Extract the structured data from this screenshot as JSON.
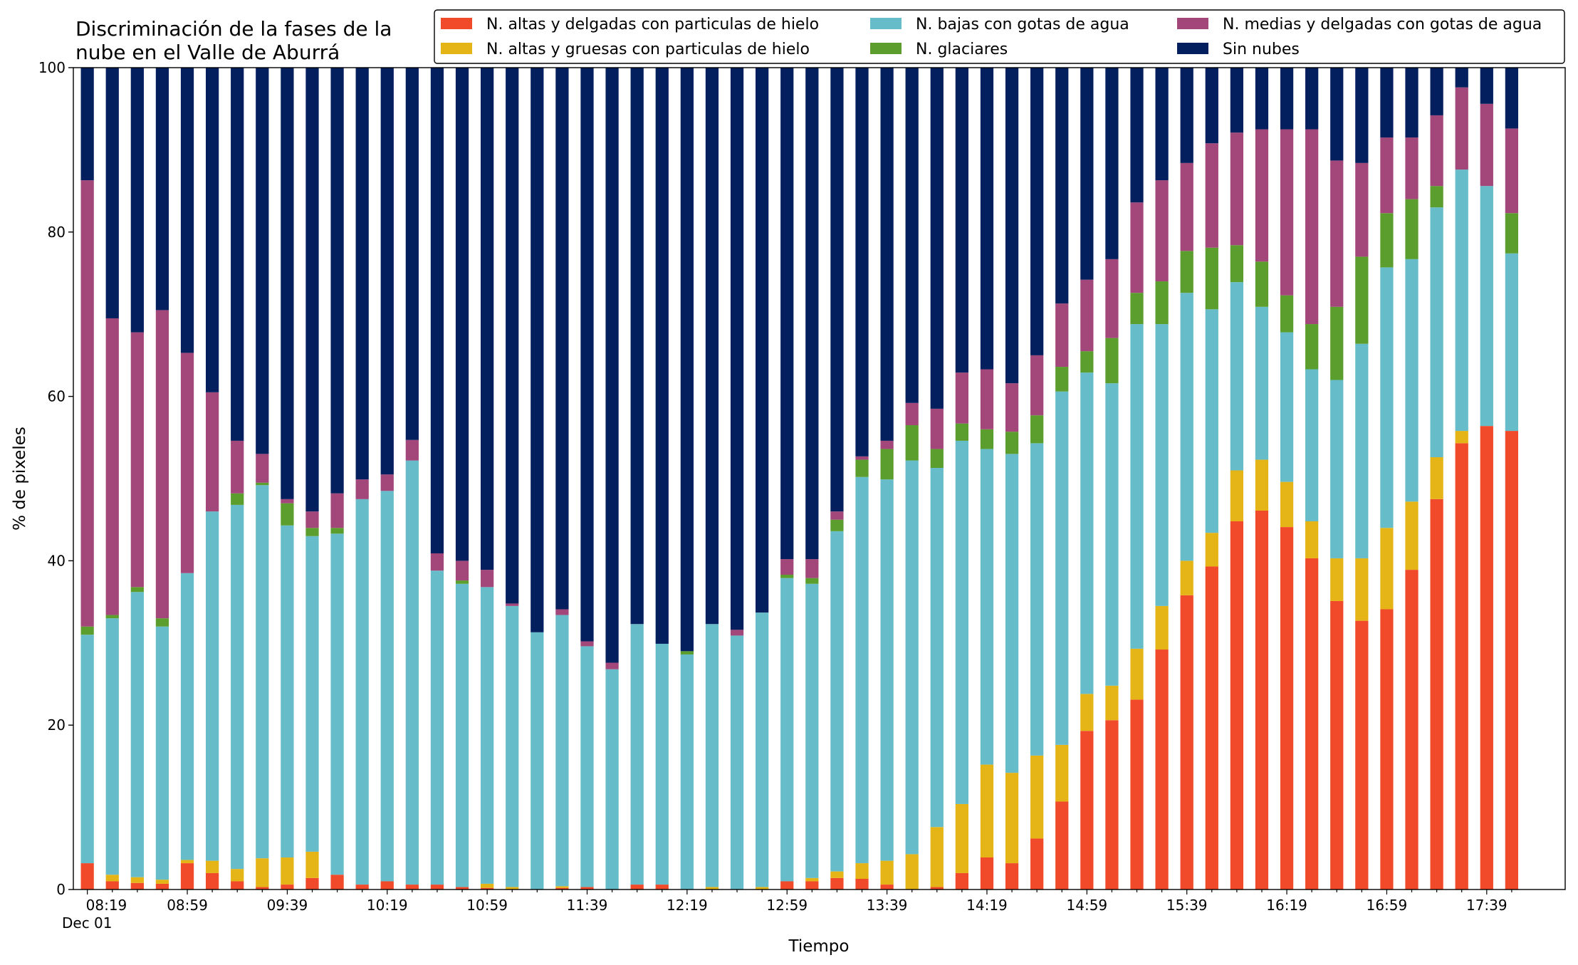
{
  "chart_data": {
    "type": "stacked_bar",
    "title": [
      "Discriminación de la fases de la",
      "nube en el Valle de Aburrá"
    ],
    "xlabel": "Tiempo",
    "ylabel": "% de pixeles",
    "x_date_label": "Dec 01",
    "categories": [
      "08:19",
      null,
      null,
      null,
      "08:59",
      null,
      null,
      null,
      "09:39",
      null,
      null,
      null,
      "10:19",
      null,
      null,
      null,
      "10:59",
      null,
      null,
      null,
      "11:39",
      null,
      null,
      null,
      "12:19",
      null,
      null,
      null,
      "12:59",
      null,
      null,
      null,
      "13:39",
      null,
      null,
      null,
      "14:19",
      null,
      null,
      null,
      "14:59",
      null,
      null,
      null,
      "15:39",
      null,
      null,
      null,
      "16:19",
      null,
      null,
      null,
      "16:59",
      null,
      null,
      null,
      "17:39",
      null
    ],
    "ylim": [
      0,
      100
    ],
    "yticks": [
      0,
      20,
      40,
      60,
      80,
      100
    ],
    "grid": false,
    "legend": "top-right",
    "series": [
      {
        "name": "N. altas y delgadas con particulas de hielo",
        "color": "#f04a2a",
        "values": [
          3.2,
          1.0,
          0.8,
          0.7,
          3.2,
          2,
          1,
          0.3,
          0.6,
          1.4,
          1.8,
          0.6,
          1,
          0.6,
          0.6,
          0.3,
          0.2,
          0,
          0,
          0.2,
          0.3,
          0,
          0.6,
          0.6,
          0,
          0,
          0,
          0,
          1,
          1,
          1.4,
          1.3,
          0.6,
          0,
          0.3,
          2,
          3.9,
          3.2,
          6.2,
          10.7,
          19.3,
          20.6,
          23.1,
          29.2,
          35.8,
          39.3,
          44.8,
          46.1,
          44.1,
          40.3,
          35.1,
          32.7,
          34.1,
          38.9,
          47.5,
          54.3,
          56.4,
          55.8
        ]
      },
      {
        "name": "N. altas y gruesas con particulas de hielo",
        "color": "#e5b517",
        "values": [
          0,
          0.8,
          0.7,
          0.5,
          0.4,
          1.5,
          1.5,
          3.5,
          3.3,
          3.2,
          0,
          0,
          0,
          0,
          0,
          0,
          0.5,
          0.3,
          0,
          0.2,
          0,
          0,
          0,
          0,
          0,
          0.3,
          0,
          0.3,
          0,
          0.4,
          0.8,
          1.9,
          2.9,
          4.3,
          7.3,
          8.4,
          11.3,
          11,
          10.1,
          6.9,
          4.5,
          4.2,
          6.2,
          5.3,
          4.2,
          4.1,
          6.2,
          6.2,
          5.5,
          4.5,
          5.2,
          7.6,
          9.9,
          8.3,
          5.1,
          1.5,
          0,
          0
        ]
      },
      {
        "name": "N. bajas con gotas de agua",
        "color": "#66bdc9",
        "values": [
          27.8,
          31.2,
          34.7,
          30.8,
          34.9,
          42.5,
          44.3,
          45.4,
          40.4,
          38.4,
          41.5,
          46.9,
          47.5,
          51.6,
          38.2,
          36.9,
          36.1,
          34.2,
          31.3,
          33,
          29.3,
          26.8,
          31.7,
          29.3,
          28.6,
          32,
          30.9,
          33.4,
          36.9,
          35.8,
          41.4,
          47,
          46.4,
          47.9,
          43.7,
          44.2,
          38.4,
          38.8,
          38,
          43,
          39.1,
          36.8,
          39.5,
          34.3,
          32.6,
          27.2,
          22.9,
          18.6,
          18.2,
          18.5,
          21.7,
          26.1,
          31.7,
          29.5,
          30.4,
          31.8,
          29.2,
          21.6
        ]
      },
      {
        "name": "N. glaciares",
        "color": "#5c9e2e",
        "values": [
          1,
          0.4,
          0.6,
          1,
          0,
          0,
          1.4,
          0.3,
          2.7,
          1,
          0.7,
          0,
          0,
          0,
          0,
          0.4,
          0,
          0,
          0,
          0,
          0,
          0,
          0,
          0,
          0.4,
          0,
          0,
          0,
          0.4,
          0.7,
          1.4,
          2.1,
          3.7,
          4.3,
          2.3,
          2.1,
          2.4,
          2.7,
          3.4,
          3,
          2.6,
          5.5,
          3.8,
          5.2,
          5.1,
          7.5,
          4.5,
          5.5,
          4.5,
          5.5,
          8.9,
          10.6,
          6.6,
          7.3,
          2.6,
          0,
          0,
          4.9
        ]
      },
      {
        "name": "N. medias y delgadas con gotas de agua",
        "color": "#a3467a",
        "values": [
          54.3,
          36.1,
          31,
          37.5,
          26.8,
          14.5,
          6.4,
          3.5,
          0.5,
          2,
          4.2,
          2.4,
          2,
          2.5,
          2.1,
          2.4,
          2.1,
          0.3,
          0,
          0.7,
          0.6,
          0.8,
          0,
          0,
          0,
          0,
          0.7,
          0,
          1.9,
          2.3,
          1,
          0.4,
          1,
          2.7,
          4.9,
          6.2,
          7.3,
          5.9,
          7.3,
          7.7,
          8.7,
          9.6,
          11,
          12.3,
          10.7,
          12.7,
          13.7,
          16.1,
          20.2,
          23.7,
          17.8,
          11.4,
          9.2,
          7.5,
          8.6,
          10,
          10,
          10.3
        ]
      },
      {
        "name": "Sin nubes",
        "color": "#031f5e",
        "values": [
          13.7,
          30.5,
          32.2,
          29.5,
          34.7,
          39.5,
          45.4,
          47,
          52.5,
          54,
          51.8,
          50.1,
          49.5,
          45.3,
          59.1,
          60,
          61.1,
          65.2,
          68.7,
          65.9,
          69.8,
          72.4,
          67.7,
          70.1,
          71,
          67.7,
          68.4,
          66.3,
          59.8,
          59.8,
          54,
          47.3,
          45.4,
          40.8,
          41.5,
          37.1,
          36.7,
          38.4,
          35,
          28.7,
          25.8,
          23.3,
          16.4,
          13.7,
          11.6,
          9.2,
          7.9,
          7.5,
          7.5,
          7.5,
          11.3,
          11.6,
          8.5,
          8.5,
          5.8,
          2.4,
          4.4,
          7.4
        ]
      }
    ]
  }
}
